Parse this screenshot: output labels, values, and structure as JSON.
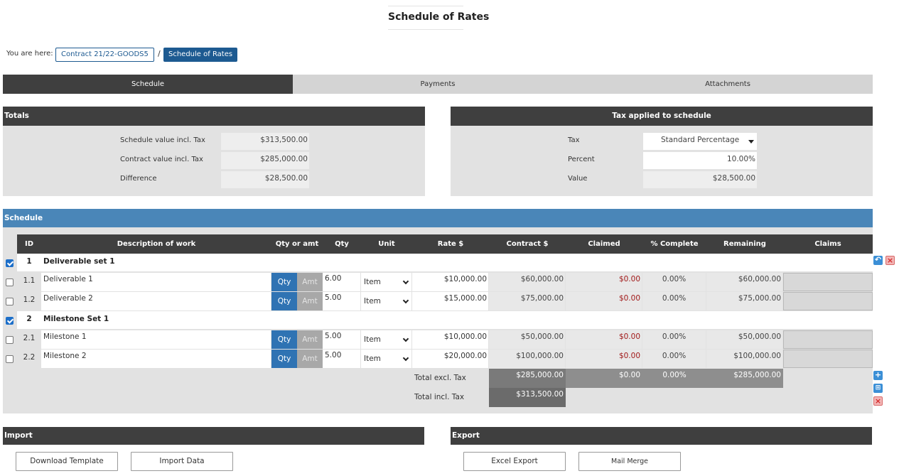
{
  "page": {
    "title": "Schedule of Rates"
  },
  "breadcrumb": {
    "label": "You are here:",
    "link": "Contract 21/22-GOODS5",
    "separator": "/",
    "current": "Schedule of Rates"
  },
  "tabs": [
    {
      "label": "Schedule",
      "active": true
    },
    {
      "label": "Payments",
      "active": false
    },
    {
      "label": "Attachments",
      "active": false
    }
  ],
  "totals": {
    "title": "Totals",
    "rows": [
      {
        "label": "Schedule value incl. Tax",
        "value": "$313,500.00"
      },
      {
        "label": "Contract value incl. Tax",
        "value": "$285,000.00"
      },
      {
        "label": "Difference",
        "value": "$28,500.00"
      }
    ]
  },
  "tax": {
    "title": "Tax applied to schedule",
    "tax_label": "Tax",
    "tax_value": "Standard Percentage",
    "percent_label": "Percent",
    "percent_value": "10.00%",
    "value_label": "Value",
    "value_value": "$28,500.00"
  },
  "schedule": {
    "title": "Schedule",
    "columns": [
      "ID",
      "Description of work",
      "Qty or amt",
      "Qty",
      "Unit",
      "Rate $",
      "Contract $",
      "Claimed",
      "% Complete",
      "Remaining",
      "Claims"
    ],
    "qty_label": "Qty",
    "amt_label": "Amt",
    "groups": [
      {
        "id": "1",
        "name": "Deliverable set 1",
        "checked": true,
        "items": [
          {
            "id": "1.1",
            "desc": "Deliverable 1",
            "qty": "6.00",
            "unit": "Item",
            "rate": "$10,000.00",
            "contract": "$60,000.00",
            "claimed": "$0.00",
            "pct": "0.00%",
            "remaining": "$60,000.00"
          },
          {
            "id": "1.2",
            "desc": "Deliverable 2",
            "qty": "5.00",
            "unit": "Item",
            "rate": "$15,000.00",
            "contract": "$75,000.00",
            "claimed": "$0.00",
            "pct": "0.00%",
            "remaining": "$75,000.00"
          }
        ]
      },
      {
        "id": "2",
        "name": "Milestone Set 1",
        "checked": true,
        "items": [
          {
            "id": "2.1",
            "desc": "Milestone 1",
            "qty": "5.00",
            "unit": "Item",
            "rate": "$10,000.00",
            "contract": "$50,000.00",
            "claimed": "$0.00",
            "pct": "0.00%",
            "remaining": "$50,000.00"
          },
          {
            "id": "2.2",
            "desc": "Milestone 2",
            "qty": "5.00",
            "unit": "Item",
            "rate": "$20,000.00",
            "contract": "$100,000.00",
            "claimed": "$0.00",
            "pct": "0.00%",
            "remaining": "$100,000.00"
          }
        ]
      }
    ],
    "totals": {
      "excl_label": "Total excl. Tax",
      "excl_contract": "$285,000.00",
      "excl_claimed": "$0.00",
      "excl_pct": "0.00%",
      "excl_remaining": "$285,000.00",
      "incl_label": "Total incl. Tax",
      "incl_contract": "$313,500.00"
    }
  },
  "import": {
    "title": "Import",
    "download_label": "Download Template",
    "import_label": "Import Data"
  },
  "export": {
    "title": "Export",
    "excel_label": "Excel Export",
    "mail_label": "Mail Merge"
  },
  "colors": {
    "accent": "#1d5a91",
    "schedule_header": "#4a86b8",
    "dark_header": "#3f3f3f",
    "negative": "#a01818"
  }
}
